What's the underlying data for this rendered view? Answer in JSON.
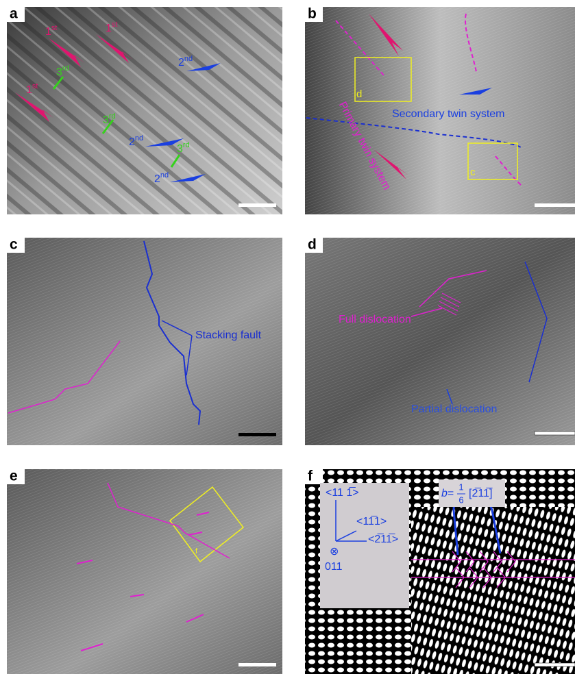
{
  "panels": [
    {
      "label": "a",
      "first": [
        {
          "num": "1",
          "suffix": "st"
        },
        {
          "num": "1",
          "suffix": "st"
        },
        {
          "num": "1",
          "suffix": "st"
        }
      ],
      "second": [
        {
          "num": "2",
          "suffix": "nd"
        },
        {
          "num": "2",
          "suffix": "nd"
        },
        {
          "num": "2",
          "suffix": "nd"
        }
      ],
      "third": [
        {
          "num": "3",
          "suffix": "rd"
        },
        {
          "num": "3",
          "suffix": "rd"
        },
        {
          "num": "3",
          "suffix": "rd"
        }
      ]
    },
    {
      "label": "b",
      "boxes": [
        "d",
        "c"
      ],
      "secondary": "Secondary twin system",
      "primary": "Primary twin system"
    },
    {
      "label": "c",
      "note": "Stacking fault"
    },
    {
      "label": "d",
      "full": "Full dislocation",
      "partial": "Partial dislocation"
    },
    {
      "label": "e",
      "box": "f"
    },
    {
      "label": "f",
      "burgers": {
        "symbol": "b",
        "equals": "=",
        "numerator": "1",
        "denominator": "6",
        "vector": "[2̅11̅]"
      },
      "directions": {
        "up": "<11 1̅>",
        "mid": "<11̅1>",
        "right": "<2̅11̅>",
        "zone_symbol": "⊗",
        "zone": "011"
      }
    }
  ]
}
